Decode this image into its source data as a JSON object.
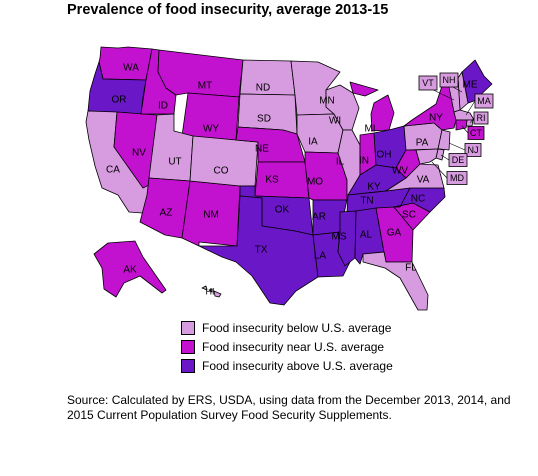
{
  "title": "Prevalence of food insecurity, average 2013-15",
  "colors": {
    "below": "#d79be0",
    "near": "#c311d0",
    "above": "#6a17c8"
  },
  "legend": [
    {
      "category": "below",
      "label": "Food insecurity below U.S. average"
    },
    {
      "category": "near",
      "label": "Food insecurity near U.S. average"
    },
    {
      "category": "above",
      "label": "Food insecurity above U.S. average"
    }
  ],
  "states": [
    {
      "abbr": "WA",
      "category": "near"
    },
    {
      "abbr": "OR",
      "category": "above"
    },
    {
      "abbr": "CA",
      "category": "below"
    },
    {
      "abbr": "NV",
      "category": "near"
    },
    {
      "abbr": "ID",
      "category": "near"
    },
    {
      "abbr": "MT",
      "category": "near"
    },
    {
      "abbr": "WY",
      "category": "near"
    },
    {
      "abbr": "UT",
      "category": "below"
    },
    {
      "abbr": "AZ",
      "category": "near"
    },
    {
      "abbr": "NM",
      "category": "near"
    },
    {
      "abbr": "CO",
      "category": "below"
    },
    {
      "abbr": "ND",
      "category": "below"
    },
    {
      "abbr": "SD",
      "category": "below"
    },
    {
      "abbr": "NE",
      "category": "near"
    },
    {
      "abbr": "KS",
      "category": "near"
    },
    {
      "abbr": "OK",
      "category": "above"
    },
    {
      "abbr": "TX",
      "category": "above"
    },
    {
      "abbr": "MN",
      "category": "below"
    },
    {
      "abbr": "IA",
      "category": "below"
    },
    {
      "abbr": "MO",
      "category": "near"
    },
    {
      "abbr": "AR",
      "category": "above"
    },
    {
      "abbr": "LA",
      "category": "above"
    },
    {
      "abbr": "WI",
      "category": "below"
    },
    {
      "abbr": "IL",
      "category": "below"
    },
    {
      "abbr": "MI",
      "category": "near"
    },
    {
      "abbr": "IN",
      "category": "near"
    },
    {
      "abbr": "OH",
      "category": "above"
    },
    {
      "abbr": "KY",
      "category": "above"
    },
    {
      "abbr": "TN",
      "category": "above"
    },
    {
      "abbr": "MS",
      "category": "above"
    },
    {
      "abbr": "AL",
      "category": "above"
    },
    {
      "abbr": "GA",
      "category": "near"
    },
    {
      "abbr": "FL",
      "category": "below"
    },
    {
      "abbr": "SC",
      "category": "near"
    },
    {
      "abbr": "NC",
      "category": "above"
    },
    {
      "abbr": "VA",
      "category": "below"
    },
    {
      "abbr": "WV",
      "category": "near"
    },
    {
      "abbr": "PA",
      "category": "below"
    },
    {
      "abbr": "NY",
      "category": "near"
    },
    {
      "abbr": "ME",
      "category": "above"
    },
    {
      "abbr": "NH",
      "category": "below"
    },
    {
      "abbr": "VT",
      "category": "below"
    },
    {
      "abbr": "MA",
      "category": "below"
    },
    {
      "abbr": "RI",
      "category": "below"
    },
    {
      "abbr": "CT",
      "category": "near"
    },
    {
      "abbr": "NJ",
      "category": "below"
    },
    {
      "abbr": "DE",
      "category": "below"
    },
    {
      "abbr": "MD",
      "category": "below"
    },
    {
      "abbr": "AK",
      "category": "near"
    },
    {
      "abbr": "HI",
      "category": "below"
    }
  ],
  "source": "Source: Calculated by ERS, USDA, using data from the December 2013, 2014, and 2015 Current Population Survey Food Security Supplements."
}
